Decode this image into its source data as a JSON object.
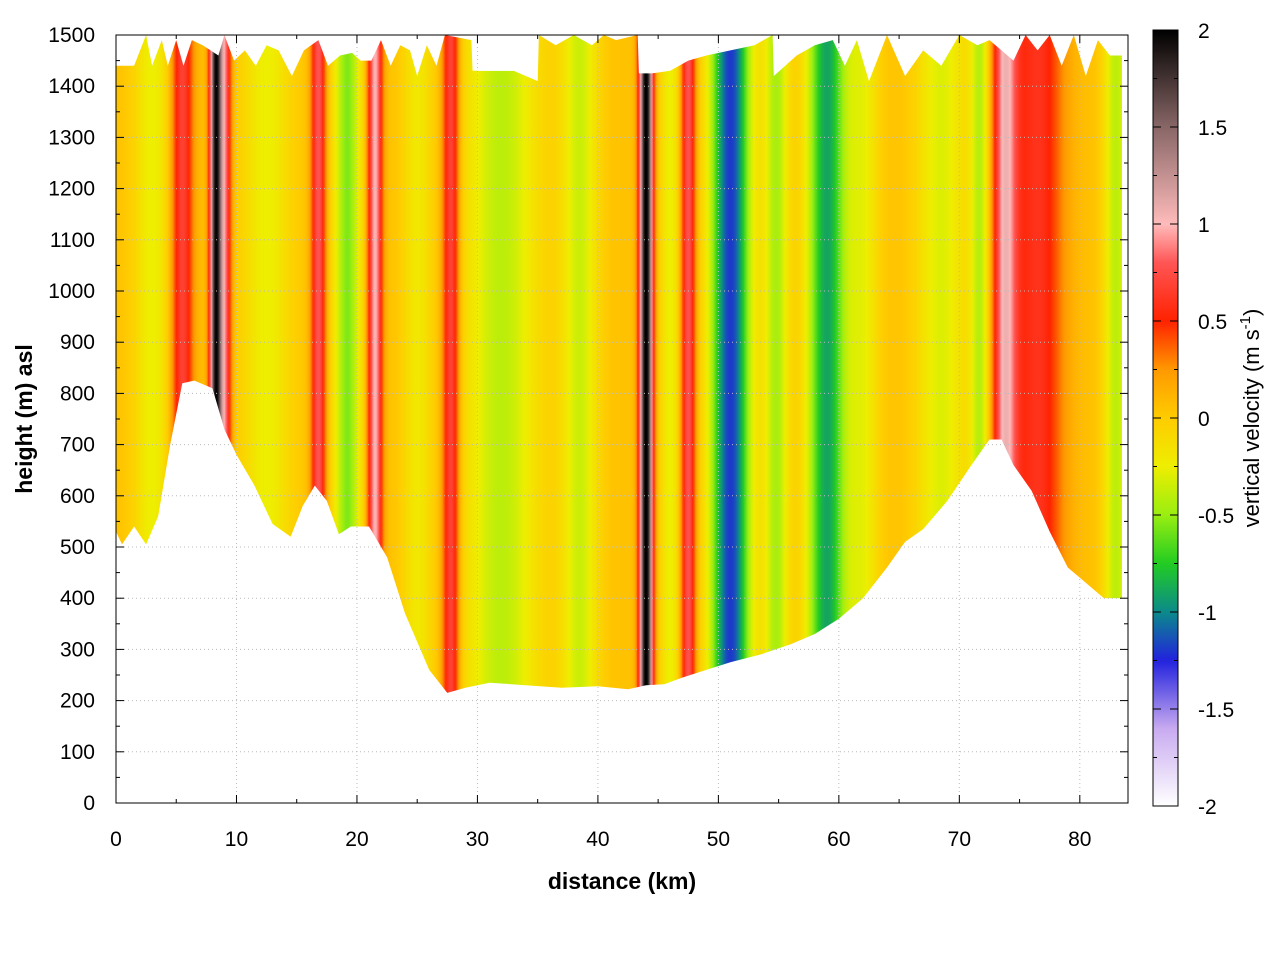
{
  "chart_data": {
    "type": "heatmap",
    "title": "",
    "xlabel": "distance (km)",
    "ylabel": "height (m) asl",
    "xlim": [
      0,
      84
    ],
    "ylim": [
      0,
      1500
    ],
    "x_ticks": [
      0,
      10,
      20,
      30,
      40,
      50,
      60,
      70,
      80
    ],
    "x_tick_labels": [
      "0",
      "10",
      "20",
      "30",
      "40",
      "50",
      "60",
      "70",
      "80"
    ],
    "y_ticks": [
      0,
      100,
      200,
      300,
      400,
      500,
      600,
      700,
      800,
      900,
      1000,
      1100,
      1200,
      1300,
      1400,
      1500
    ],
    "y_tick_labels": [
      "0",
      "100",
      "200",
      "300",
      "400",
      "500",
      "600",
      "700",
      "800",
      "900",
      "1000",
      "1100",
      "1200",
      "1300",
      "1400",
      "1500"
    ],
    "grid": true,
    "colorbar": {
      "title_prefix": "vertical velocity (m s",
      "title_superscript": "-1",
      "title_suffix": ")",
      "range": [
        -2,
        2
      ],
      "ticks": [
        -2,
        -1.5,
        -1,
        -0.5,
        0,
        0.5,
        1,
        1.5,
        2
      ],
      "tick_labels": [
        "-2",
        "-1.5",
        "-1",
        "-0.5",
        "0",
        "0.5",
        "1",
        "1.5",
        "2"
      ],
      "colormap": [
        {
          "v": -2.0,
          "color": "#ffffff"
        },
        {
          "v": -1.6,
          "color": "#c8aaf0"
        },
        {
          "v": -1.25,
          "color": "#2222dd"
        },
        {
          "v": -1.0,
          "color": "#0b8a8a"
        },
        {
          "v": -0.75,
          "color": "#22cc22"
        },
        {
          "v": -0.5,
          "color": "#99ee11"
        },
        {
          "v": -0.25,
          "color": "#eeee00"
        },
        {
          "v": 0.0,
          "color": "#ffcc00"
        },
        {
          "v": 0.25,
          "color": "#ff9900"
        },
        {
          "v": 0.5,
          "color": "#ff2200"
        },
        {
          "v": 0.8,
          "color": "#ff5555"
        },
        {
          "v": 1.0,
          "color": "#ffbbbb"
        },
        {
          "v": 1.5,
          "color": "#886666"
        },
        {
          "v": 2.0,
          "color": "#000000"
        }
      ]
    },
    "terrain": {
      "description": "ground surface height along the section (m asl)",
      "x": [
        0,
        0.5,
        1.5,
        2.5,
        3.5,
        4.5,
        5.5,
        6.5,
        8,
        9,
        10,
        11.5,
        13,
        14.5,
        15.5,
        16.5,
        17.5,
        18.5,
        19.5,
        21,
        22.5,
        24,
        26,
        27.5,
        29,
        31,
        34,
        37,
        40,
        42.5,
        44,
        45.5,
        47,
        49,
        51,
        53.5,
        56,
        58,
        60,
        62,
        64,
        65.5,
        67,
        69,
        71,
        72.5,
        73.5,
        74.5,
        76,
        77.5,
        79,
        80.5,
        82,
        83.5
      ],
      "height": [
        530,
        505,
        540,
        505,
        560,
        700,
        820,
        825,
        810,
        730,
        680,
        620,
        545,
        520,
        580,
        620,
        590,
        525,
        540,
        540,
        480,
        370,
        260,
        215,
        225,
        235,
        230,
        225,
        228,
        222,
        230,
        232,
        245,
        260,
        275,
        290,
        310,
        330,
        360,
        400,
        460,
        510,
        535,
        590,
        660,
        710,
        710,
        660,
        610,
        530,
        460,
        430,
        400,
        400
      ]
    },
    "top": {
      "description": "upper boundary of plotted data (m asl)",
      "x": [
        0,
        1.5,
        2.5,
        3,
        3.8,
        4.3,
        5,
        5.6,
        6.3,
        7.2,
        8.5,
        9,
        9.8,
        10.7,
        11.6,
        12.5,
        13.5,
        14.6,
        15.6,
        16.8,
        17.6,
        18.6,
        19.6,
        20.3,
        21.2,
        22,
        22.8,
        23.6,
        24.4,
        25,
        25.8,
        26.6,
        27.3,
        29.5,
        29.6,
        31,
        33,
        35,
        35.1,
        36.5,
        38,
        39.5,
        40.5,
        41.5,
        43.3,
        43.4,
        44.5,
        46,
        47.5,
        49,
        51,
        53,
        54.5,
        54.6,
        56.5,
        58,
        59.5,
        60.5,
        61.5,
        62.5,
        64,
        65.5,
        67,
        68.5,
        70,
        71.5,
        72.5,
        73.5,
        74.5,
        75.5,
        76.5,
        77.5,
        78.5,
        79.5,
        80.5,
        81.5,
        82.5,
        83.5
      ],
      "height": [
        1440,
        1440,
        1500,
        1440,
        1490,
        1440,
        1490,
        1440,
        1490,
        1480,
        1460,
        1500,
        1450,
        1470,
        1440,
        1480,
        1470,
        1420,
        1470,
        1490,
        1440,
        1460,
        1465,
        1450,
        1450,
        1490,
        1440,
        1480,
        1470,
        1420,
        1480,
        1440,
        1500,
        1490,
        1430,
        1430,
        1430,
        1410,
        1500,
        1480,
        1500,
        1480,
        1500,
        1490,
        1500,
        1425,
        1425,
        1430,
        1450,
        1460,
        1470,
        1480,
        1500,
        1420,
        1460,
        1480,
        1490,
        1440,
        1490,
        1410,
        1500,
        1420,
        1470,
        1440,
        1500,
        1480,
        1490,
        1470,
        1450,
        1500,
        1470,
        1500,
        1440,
        1500,
        1420,
        1490,
        1460,
        1460
      ],
      "gaps": [
        [
          30,
          35
        ],
        [
          43.5,
          44.3
        ]
      ]
    },
    "updraft_bands": [
      {
        "x": 5.5,
        "peak": 0.65,
        "width": 0.9
      },
      {
        "x": 8.3,
        "peak": 1.9,
        "width": 0.5
      },
      {
        "x": 9.1,
        "peak": 0.7,
        "width": 0.5
      },
      {
        "x": 16.8,
        "peak": 0.75,
        "width": 0.6
      },
      {
        "x": 21.5,
        "peak": 0.95,
        "width": 0.6
      },
      {
        "x": 27.8,
        "peak": 0.7,
        "width": 0.7
      },
      {
        "x": 44.0,
        "peak": 2.0,
        "width": 0.55
      },
      {
        "x": 47.5,
        "peak": 0.75,
        "width": 0.6
      },
      {
        "x": 73.8,
        "peak": 0.9,
        "width": 1.0
      },
      {
        "x": 76.5,
        "peak": 0.55,
        "width": 2.2
      }
    ],
    "downdraft_bands": [
      {
        "x": 3.0,
        "peak": -0.3,
        "width": 1.5
      },
      {
        "x": 12.5,
        "peak": -0.3,
        "width": 2.0
      },
      {
        "x": 19.2,
        "peak": -0.6,
        "width": 1.1
      },
      {
        "x": 25.0,
        "peak": -0.25,
        "width": 1.2
      },
      {
        "x": 32.0,
        "peak": -0.45,
        "width": 3.0
      },
      {
        "x": 38.5,
        "peak": -0.4,
        "width": 1.5
      },
      {
        "x": 46.0,
        "peak": -0.3,
        "width": 0.8
      },
      {
        "x": 51.0,
        "peak": -1.25,
        "width": 1.6
      },
      {
        "x": 54.8,
        "peak": -0.5,
        "width": 1.0
      },
      {
        "x": 59.0,
        "peak": -0.95,
        "width": 1.6
      },
      {
        "x": 62.0,
        "peak": -0.3,
        "width": 1.3
      },
      {
        "x": 68.5,
        "peak": -0.35,
        "width": 2.0
      },
      {
        "x": 71.7,
        "peak": -0.45,
        "width": 0.8
      },
      {
        "x": 83.0,
        "peak": -0.45,
        "width": 1.0
      }
    ],
    "background_velocity": 0.05
  }
}
